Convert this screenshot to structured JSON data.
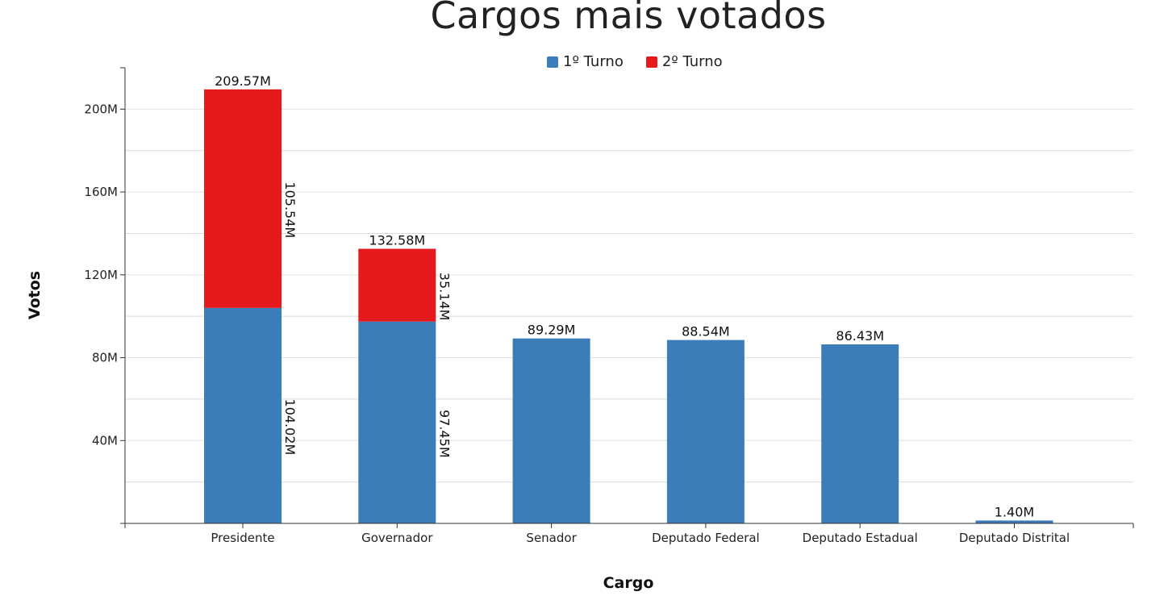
{
  "title": "Cargos mais votados",
  "legend": [
    {
      "label": "1º Turno",
      "color": "#3a7db8"
    },
    {
      "label": "2º Turno",
      "color": "#e41a1c"
    }
  ],
  "chart_data": {
    "type": "bar",
    "stacked": true,
    "title": "Cargos mais votados",
    "xlabel": "Cargo",
    "ylabel": "Votos",
    "ylim": [
      0,
      220000000
    ],
    "yticks": [
      40000000,
      80000000,
      120000000,
      160000000,
      200000000
    ],
    "ytick_labels": [
      "40M",
      "80M",
      "120M",
      "160M",
      "200M"
    ],
    "grid": true,
    "legend_position": "top-center",
    "categories": [
      "Presidente",
      "Governador",
      "Senador",
      "Deputado Federal",
      "Deputado Estadual",
      "Deputado Distrital"
    ],
    "series": [
      {
        "name": "1º Turno",
        "color": "#3a7db8",
        "values": [
          104020000,
          97450000,
          89290000,
          88540000,
          86430000,
          1400000
        ],
        "labels": [
          "104.02M",
          "97.45M",
          "",
          "",
          "",
          ""
        ]
      },
      {
        "name": "2º Turno",
        "color": "#e41a1c",
        "values": [
          105540000,
          35140000,
          0,
          0,
          0,
          0
        ],
        "labels": [
          "105.54M",
          "35.14M",
          "",
          "",
          "",
          ""
        ]
      }
    ],
    "totals": [
      209570000,
      132580000,
      89290000,
      88540000,
      86430000,
      1400000
    ],
    "total_labels": [
      "209.57M",
      "132.58M",
      "89.29M",
      "88.54M",
      "86.43M",
      "1.40M"
    ]
  }
}
